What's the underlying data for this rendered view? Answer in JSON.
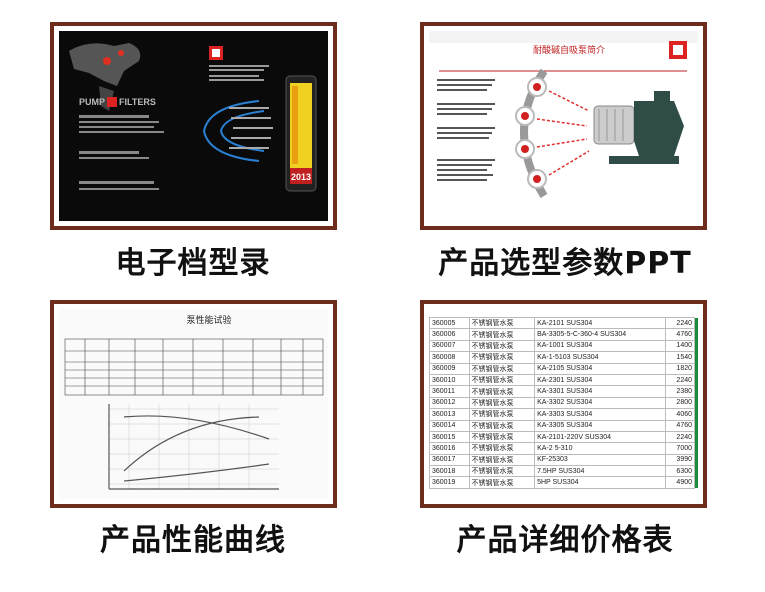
{
  "panels": [
    {
      "caption": "电子档型录",
      "texts": [
        "PUMP",
        "FILTERS",
        "2013"
      ]
    },
    {
      "caption": "产品选型参数PPT",
      "texts": [
        "耐酸碱自吸泵简介"
      ]
    },
    {
      "caption": "产品性能曲线",
      "texts": [
        "泵性能试验"
      ]
    },
    {
      "caption": "产品详细价格表"
    }
  ],
  "price_table": {
    "rows": [
      [
        "360005",
        "不锈钢管水泵",
        "KA-2101 SUS304",
        "2240"
      ],
      [
        "360006",
        "不锈钢管水泵",
        "BA-3305-5-C-360-4 SUS304",
        "4760"
      ],
      [
        "360007",
        "不锈钢管水泵",
        "KA-1001 SUS304",
        "1400"
      ],
      [
        "360008",
        "不锈钢管水泵",
        "KA-1-5103 SUS304",
        "1540"
      ],
      [
        "360009",
        "不锈钢管水泵",
        "KA-2105 SUS304",
        "1820"
      ],
      [
        "360010",
        "不锈钢管水泵",
        "KA-2301 SUS304",
        "2240"
      ],
      [
        "360011",
        "不锈钢管水泵",
        "KA-3301 SUS304",
        "2380"
      ],
      [
        "360012",
        "不锈钢管水泵",
        "KA-3302 SUS304",
        "2800"
      ],
      [
        "360013",
        "不锈钢管水泵",
        "KA-3303 SUS304",
        "4060"
      ],
      [
        "360014",
        "不锈钢管水泵",
        "KA-3305 SUS304",
        "4760"
      ],
      [
        "360015",
        "不锈钢管水泵",
        "KA-2101-220V SUS304",
        "2240"
      ],
      [
        "360016",
        "不锈钢管水泵",
        "KA-2 5-310",
        "7000"
      ],
      [
        "360017",
        "不锈钢管水泵",
        "KF-25303",
        "3990"
      ],
      [
        "360018",
        "不锈钢管水泵",
        "7.5HP SUS304",
        "6300"
      ],
      [
        "360019",
        "不锈钢管水泵",
        "5HP SUS304",
        "4900"
      ]
    ]
  }
}
